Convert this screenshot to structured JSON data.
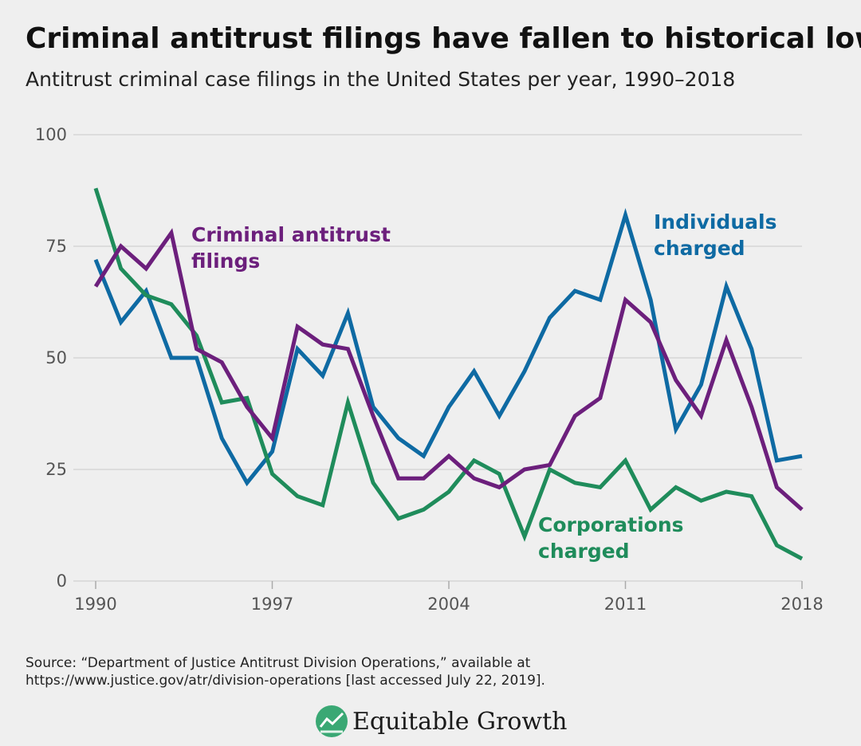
{
  "chart_data": {
    "type": "line",
    "title": "Criminal antitrust filings have fallen to historical lows",
    "subtitle": "Antitrust criminal case filings in the United States per year, 1990–2018",
    "x": [
      1990,
      1991,
      1992,
      1993,
      1994,
      1995,
      1996,
      1997,
      1998,
      1999,
      2000,
      2001,
      2002,
      2003,
      2004,
      2005,
      2006,
      2007,
      2008,
      2009,
      2010,
      2011,
      2012,
      2013,
      2014,
      2015,
      2016,
      2017,
      2018
    ],
    "series": [
      {
        "name": "Individuals charged",
        "color": "#0e6aa3",
        "values": [
          72,
          58,
          65,
          50,
          50,
          32,
          22,
          29,
          52,
          46,
          60,
          39,
          32,
          28,
          39,
          47,
          37,
          47,
          59,
          65,
          63,
          82,
          63,
          34,
          44,
          66,
          52,
          27,
          28
        ]
      },
      {
        "name": "Corporations charged",
        "color": "#1f8c5b",
        "values": [
          88,
          70,
          64,
          62,
          55,
          40,
          41,
          24,
          19,
          17,
          40,
          22,
          14,
          16,
          20,
          27,
          24,
          10,
          25,
          22,
          21,
          27,
          16,
          21,
          18,
          20,
          19,
          8,
          5
        ]
      },
      {
        "name": "Criminal antitrust filings",
        "color": "#6c1f7c",
        "values": [
          66,
          75,
          70,
          78,
          52,
          49,
          39,
          32,
          57,
          53,
          52,
          37,
          23,
          23,
          28,
          23,
          21,
          25,
          26,
          37,
          41,
          63,
          58,
          45,
          37,
          54,
          39,
          21,
          16
        ]
      }
    ],
    "xlim": [
      1990,
      2018
    ],
    "xticks": [
      1990,
      1997,
      2004,
      2011,
      2018
    ],
    "ylim": [
      0,
      100
    ],
    "yticks": [
      0,
      25,
      50,
      75,
      100
    ],
    "grid": true,
    "source": [
      "Source: “Department of Justice Antitrust Division Operations,” available at",
      "https://www.justice.gov/atr/division-operations [last accessed July 22, 2019]."
    ],
    "brand": "Equitable Growth"
  }
}
